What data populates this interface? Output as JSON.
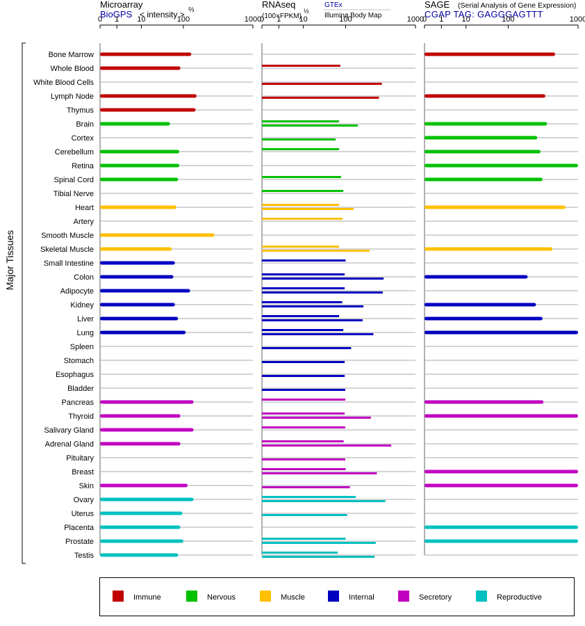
{
  "side_label": "Major Tissues",
  "panels": [
    {
      "id": "microarray",
      "title": "Microarray",
      "source": "BioGPS",
      "scale_note": "< intensity >",
      "scale_exp": "⅔",
      "subtitle": "",
      "subtitle2": ""
    },
    {
      "id": "rnaseq",
      "title": "RNAseq",
      "source": "",
      "scale_note": "(100×FPKM)",
      "scale_exp": "½",
      "subtitle": "GTEx",
      "subtitle2": "Illumina Body Map"
    },
    {
      "id": "sage",
      "title": "SAGE",
      "source": "CGAP TAG: GAGGGAGTTT",
      "scale_note": "",
      "scale_exp": "",
      "subtitle": "(Serial Analysis of Gene Expression)",
      "subtitle2": ""
    }
  ],
  "legend": [
    {
      "name": "Immune",
      "color": "#c00000"
    },
    {
      "name": "Nervous",
      "color": "#00c000"
    },
    {
      "name": "Muscle",
      "color": "#ffc000"
    },
    {
      "name": "Internal",
      "color": "#0000c0"
    },
    {
      "name": "Secretory",
      "color": "#c000c0"
    },
    {
      "name": "Reproductive",
      "color": "#00c0c0"
    }
  ],
  "chart_data": {
    "type": "bar",
    "orientation": "horizontal",
    "axis": {
      "scale": "custom root scale",
      "xlim": [
        0,
        1000
      ],
      "ticks": [
        0,
        1,
        10,
        100,
        1000
      ],
      "tick_labels": [
        "0",
        "1",
        "10",
        "100",
        "1000"
      ]
    },
    "tissues": [
      {
        "name": "Bone Marrow",
        "group": "Immune",
        "microarray": 130,
        "gtex": null,
        "ibm": null,
        "sage": 470
      },
      {
        "name": "Whole Blood",
        "group": "Immune",
        "microarray": 85,
        "gtex": 75,
        "ibm": null,
        "sage": null
      },
      {
        "name": "White Blood Cells",
        "group": "Immune",
        "microarray": null,
        "gtex": null,
        "ibm": 330,
        "sage": null
      },
      {
        "name": "Lymph Node",
        "group": "Immune",
        "microarray": 155,
        "gtex": null,
        "ibm": 300,
        "sage": 340
      },
      {
        "name": "Thymus",
        "group": "Immune",
        "microarray": 150,
        "gtex": null,
        "ibm": null,
        "sage": null
      },
      {
        "name": "Brain",
        "group": "Nervous",
        "microarray": 48,
        "gtex": 70,
        "ibm": 150,
        "sage": 360
      },
      {
        "name": "Cortex",
        "group": "Nervous",
        "microarray": null,
        "gtex": null,
        "ibm": 58,
        "sage": 260
      },
      {
        "name": "Cerebellum",
        "group": "Nervous",
        "microarray": 80,
        "gtex": 70,
        "ibm": null,
        "sage": 290
      },
      {
        "name": "Retina",
        "group": "Nervous",
        "microarray": 80,
        "gtex": null,
        "ibm": null,
        "sage": 1000
      },
      {
        "name": "Spinal Cord",
        "group": "Nervous",
        "microarray": 75,
        "gtex": 78,
        "ibm": null,
        "sage": 310
      },
      {
        "name": "Tibial Nerve",
        "group": "Nervous",
        "microarray": null,
        "gtex": 88,
        "ibm": null,
        "sage": null
      },
      {
        "name": "Heart",
        "group": "Muscle",
        "microarray": 68,
        "gtex": 70,
        "ibm": 130,
        "sage": 660
      },
      {
        "name": "Artery",
        "group": "Muscle",
        "microarray": null,
        "gtex": 85,
        "ibm": null,
        "sage": null
      },
      {
        "name": "Smooth Muscle",
        "group": "Muscle",
        "microarray": 280,
        "gtex": null,
        "ibm": null,
        "sage": null
      },
      {
        "name": "Skeletal Muscle",
        "group": "Muscle",
        "microarray": 53,
        "gtex": 70,
        "ibm": 220,
        "sage": 430
      },
      {
        "name": "Small Intestine",
        "group": "Internal",
        "microarray": 63,
        "gtex": 100,
        "ibm": null,
        "sage": null
      },
      {
        "name": "Colon",
        "group": "Internal",
        "microarray": 58,
        "gtex": 95,
        "ibm": 350,
        "sage": 190
      },
      {
        "name": "Adipocyte",
        "group": "Internal",
        "microarray": 125,
        "gtex": 95,
        "ibm": 340,
        "sage": null
      },
      {
        "name": "Kidney",
        "group": "Internal",
        "microarray": 63,
        "gtex": 83,
        "ibm": 180,
        "sage": 250
      },
      {
        "name": "Liver",
        "group": "Internal",
        "microarray": 75,
        "gtex": 70,
        "ibm": 175,
        "sage": 310
      },
      {
        "name": "Lung",
        "group": "Internal",
        "microarray": 108,
        "gtex": 88,
        "ibm": 250,
        "sage": 1000
      },
      {
        "name": "Spleen",
        "group": "Internal",
        "microarray": null,
        "gtex": null,
        "ibm": 120,
        "sage": null
      },
      {
        "name": "Stomach",
        "group": "Internal",
        "microarray": null,
        "gtex": null,
        "ibm": 95,
        "sage": null
      },
      {
        "name": "Esophagus",
        "group": "Internal",
        "microarray": null,
        "gtex": null,
        "ibm": 95,
        "sage": null
      },
      {
        "name": "Bladder",
        "group": "Internal",
        "microarray": null,
        "gtex": null,
        "ibm": 98,
        "sage": null
      },
      {
        "name": "Pancreas",
        "group": "Secretory",
        "microarray": 140,
        "gtex": 98,
        "ibm": null,
        "sage": 320
      },
      {
        "name": "Thyroid",
        "group": "Secretory",
        "microarray": 85,
        "gtex": 95,
        "ibm": 230,
        "sage": 1000
      },
      {
        "name": "Salivary Gland",
        "group": "Secretory",
        "microarray": 140,
        "gtex": 98,
        "ibm": null,
        "sage": null
      },
      {
        "name": "Adrenal Gland",
        "group": "Secretory",
        "microarray": 85,
        "gtex": 90,
        "ibm": 450,
        "sage": null
      },
      {
        "name": "Pituitary",
        "group": "Secretory",
        "microarray": null,
        "gtex": null,
        "ibm": 98,
        "sage": null
      },
      {
        "name": "Breast",
        "group": "Secretory",
        "microarray": null,
        "gtex": 100,
        "ibm": 280,
        "sage": 1000
      },
      {
        "name": "Skin",
        "group": "Secretory",
        "microarray": 115,
        "gtex": null,
        "ibm": 115,
        "sage": 1000
      },
      {
        "name": "Ovary",
        "group": "Reproductive",
        "microarray": 140,
        "gtex": 140,
        "ibm": 370,
        "sage": null
      },
      {
        "name": "Uterus",
        "group": "Reproductive",
        "microarray": 95,
        "gtex": null,
        "ibm": 105,
        "sage": null
      },
      {
        "name": "Placenta",
        "group": "Reproductive",
        "microarray": 85,
        "gtex": null,
        "ibm": null,
        "sage": 1000
      },
      {
        "name": "Prostate",
        "group": "Reproductive",
        "microarray": 100,
        "gtex": 100,
        "ibm": 270,
        "sage": 1000
      },
      {
        "name": "Testis",
        "group": "Reproductive",
        "microarray": 75,
        "gtex": 65,
        "ibm": 260,
        "sage": null
      }
    ]
  }
}
